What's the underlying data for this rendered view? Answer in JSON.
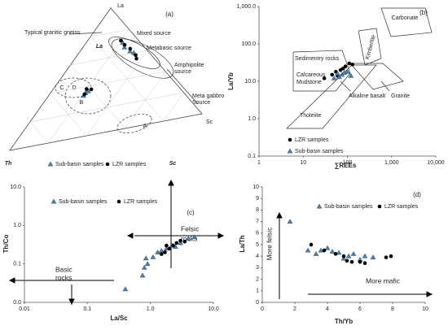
{
  "chart_data": [
    {
      "type": "ternary",
      "label": "(a)",
      "apex_labels": [
        "La",
        "Sc"
      ],
      "axis_labels": [
        "La",
        "Th",
        "Sc"
      ],
      "annotations": [
        "Typical granitic gneiss",
        "Mixed source",
        "Metabasic source",
        "Amphipolite",
        "source",
        "Meta gabbro",
        "Source",
        "A",
        "B",
        "C",
        "D"
      ],
      "series": [
        {
          "name": "Sub-basin samples",
          "color": "#4e7fa8",
          "marker": "triangle",
          "la": [
            0.7,
            0.66,
            0.62,
            0.6,
            0.35,
            0.33,
            0.36
          ],
          "th": [
            0.08,
            0.09,
            0.08,
            0.07,
            0.44,
            0.46,
            0.42
          ],
          "sc": [
            0.22,
            0.25,
            0.3,
            0.33,
            0.21,
            0.21,
            0.22
          ]
        },
        {
          "name": "LZR samples",
          "color": "#000000",
          "marker": "circle",
          "la": [
            0.72,
            0.68,
            0.64,
            0.58,
            0.55,
            0.38,
            0.34,
            0.37
          ],
          "th": [
            0.08,
            0.08,
            0.07,
            0.07,
            0.08,
            0.42,
            0.45,
            0.4
          ],
          "sc": [
            0.2,
            0.24,
            0.29,
            0.35,
            0.37,
            0.2,
            0.21,
            0.23
          ]
        }
      ]
    },
    {
      "type": "scatter",
      "label": "(b)",
      "xlabel": "∑REEs",
      "ylabel": "La/Yb",
      "xlog": true,
      "ylog": true,
      "xlim": [
        1,
        10000
      ],
      "xticks": [
        1,
        10,
        100,
        {
          "value": 1000,
          "label": "1,000"
        },
        {
          "value": 10000,
          "label": "10,000"
        }
      ],
      "ylim": [
        0.1,
        1000
      ],
      "yticks": [
        0.1,
        {
          "value": 1,
          "label": "1.0"
        },
        {
          "value": 10,
          "label": "10.0"
        },
        {
          "value": 100,
          "label": "100.0"
        },
        {
          "value": 1000,
          "label": "1,000.0"
        }
      ],
      "annotations": [
        "Carbonate",
        "Kimberlite",
        "Sedimentry rocks",
        "Calcareous",
        "Mudstone",
        "Granite",
        "Alkaline basalt",
        "Tholeiite"
      ],
      "series": [
        {
          "name": "LZR samples",
          "color": "#000000",
          "marker": "circle",
          "x": [
            30,
            45,
            55,
            60,
            70,
            80,
            90,
            110,
            130
          ],
          "values": [
            12,
            15,
            18,
            14,
            20,
            22,
            25,
            30,
            28
          ]
        },
        {
          "name": "Sub-basin samples",
          "color": "#4e7fa8",
          "marker": "triangle",
          "x": [
            50,
            60,
            65,
            75,
            85,
            100,
            120
          ],
          "values": [
            12,
            16,
            13,
            15,
            17,
            18,
            14
          ]
        }
      ]
    },
    {
      "type": "scatter",
      "label": "(c)",
      "xlabel": "La/Sc",
      "ylabel": "Th/Co",
      "xlog": true,
      "ylog": true,
      "xlim": [
        0.01,
        10
      ],
      "xticks": [
        0.01,
        0.1,
        {
          "value": 1,
          "label": "1.0"
        },
        {
          "value": 10,
          "label": "10.0"
        }
      ],
      "ylim": [
        0.01,
        10
      ],
      "yticks": [
        {
          "value": 0.01,
          "label": "0.0"
        },
        0.1,
        {
          "value": 1,
          "label": "1.0"
        },
        {
          "value": 10,
          "label": "10.0"
        }
      ],
      "annotations": [
        "Felsic",
        "rocks",
        "Basic",
        "rocks"
      ],
      "series": [
        {
          "name": "Sub-basin samples",
          "color": "#4e7fa8",
          "marker": "triangle",
          "x": [
            0.4,
            0.75,
            0.8,
            0.9,
            0.85,
            1.1,
            1.3,
            1.5,
            1.8,
            2.2,
            2.5,
            3,
            4,
            5
          ],
          "values": [
            0.022,
            0.05,
            0.08,
            0.1,
            0.14,
            0.15,
            0.2,
            0.22,
            0.25,
            0.3,
            0.28,
            0.35,
            0.45,
            0.5
          ]
        },
        {
          "name": "LZR samples",
          "color": "#000000",
          "marker": "circle",
          "x": [
            1.5,
            1.7,
            1.8,
            2,
            2.3,
            2.6,
            3,
            3.5
          ],
          "values": [
            0.18,
            0.2,
            0.3,
            0.25,
            0.3,
            0.35,
            0.4,
            0.38
          ]
        }
      ]
    },
    {
      "type": "scatter",
      "label": "(d)",
      "xlabel": "Th/Yb",
      "ylabel": "La/Th",
      "xlog": false,
      "ylog": false,
      "xlim": [
        0,
        10
      ],
      "xticks": [
        0,
        2,
        4,
        6,
        8,
        10
      ],
      "ylim": [
        0,
        10
      ],
      "yticks": [
        0,
        1,
        2,
        3,
        4,
        5,
        6,
        7,
        8,
        9,
        10
      ],
      "annotations": [
        "More felsic",
        "More mafic"
      ],
      "series": [
        {
          "name": "Sub-basin samples",
          "color": "#4e7fa8",
          "marker": "triangle",
          "x": [
            1.7,
            2.8,
            3.3,
            3.6,
            4,
            4.3,
            4.7,
            5,
            5.3,
            5.6,
            6,
            6.3,
            6.8
          ],
          "values": [
            7,
            4.5,
            4.2,
            4.5,
            4.7,
            4.4,
            4.3,
            3.8,
            4,
            4.2,
            3.7,
            4,
            3.9
          ]
        },
        {
          "name": "LZR samples",
          "color": "#000000",
          "marker": "circle",
          "x": [
            3,
            3.8,
            4.5,
            5,
            5.2,
            5.5,
            6,
            6.3,
            7.6,
            7.9
          ],
          "values": [
            5,
            4.5,
            4.2,
            4,
            3.6,
            3.5,
            3.5,
            3.4,
            3.9,
            4
          ]
        }
      ]
    }
  ]
}
